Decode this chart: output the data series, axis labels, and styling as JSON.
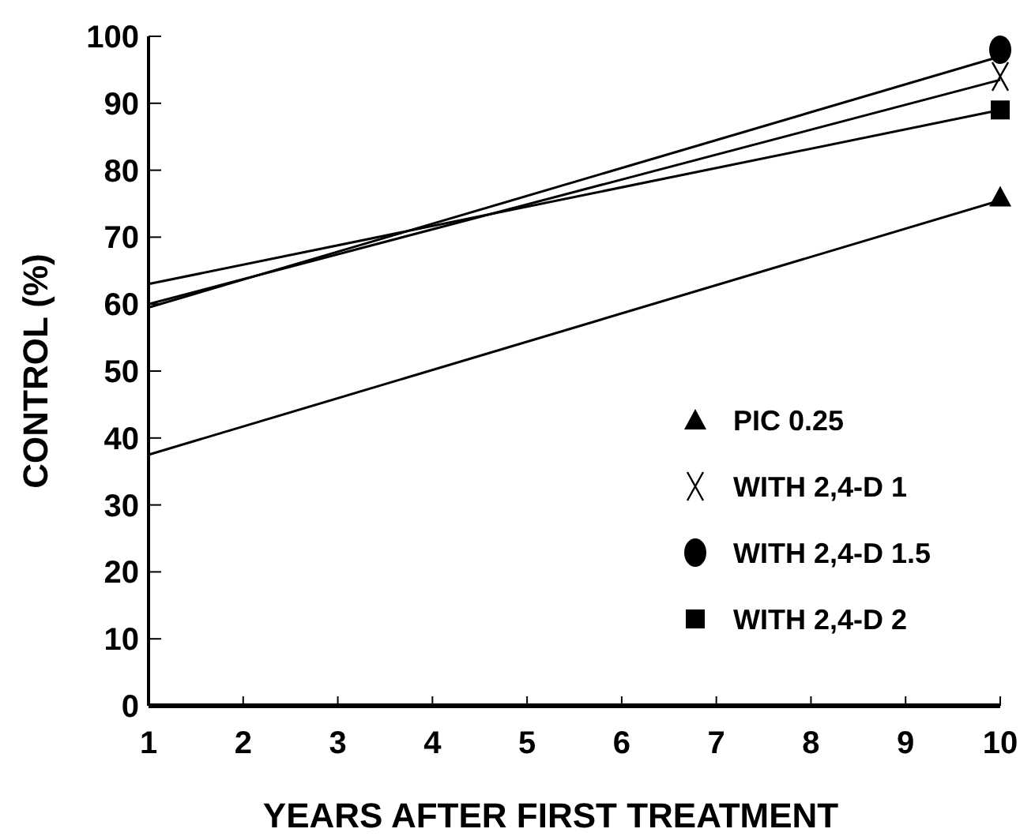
{
  "chart_data": {
    "type": "line",
    "xlabel": "YEARS AFTER FIRST TREATMENT",
    "ylabel": "CONTROL (%)",
    "x": [
      1,
      10
    ],
    "xlim": [
      1,
      10
    ],
    "xticks": [
      1,
      2,
      3,
      4,
      5,
      6,
      7,
      8,
      9,
      10
    ],
    "ylim": [
      0,
      100
    ],
    "yticks": [
      0,
      10,
      20,
      30,
      40,
      50,
      60,
      70,
      80,
      90,
      100
    ],
    "legend": "bottom right",
    "series": [
      {
        "type": "line",
        "color": "#000000",
        "values": [
          37.5,
          75.5
        ],
        "marker": "none"
      },
      {
        "type": "line",
        "color": "#000000",
        "values": [
          60,
          93.5
        ],
        "marker": "none"
      },
      {
        "type": "line",
        "color": "#000000",
        "values": [
          59.5,
          97
        ],
        "marker": "none"
      },
      {
        "type": "line",
        "color": "#000000",
        "values": [
          63,
          89
        ],
        "marker": "none"
      },
      {
        "type": "scatter",
        "name": "PIC 0.25",
        "color": "#000000",
        "values": [
          null,
          76
        ],
        "marker": "triangle"
      },
      {
        "type": "scatter",
        "name": "WITH 2,4-D 1",
        "color": "#000000",
        "values": [
          null,
          94
        ],
        "marker": "cross"
      },
      {
        "type": "scatter",
        "name": "WITH 2,4-D 1.5",
        "color": "#000000",
        "values": [
          null,
          98
        ],
        "marker": "circle"
      },
      {
        "type": "scatter",
        "name": "WITH 2,4-D 2",
        "color": "#000000",
        "values": [
          null,
          89
        ],
        "marker": "square"
      }
    ]
  }
}
